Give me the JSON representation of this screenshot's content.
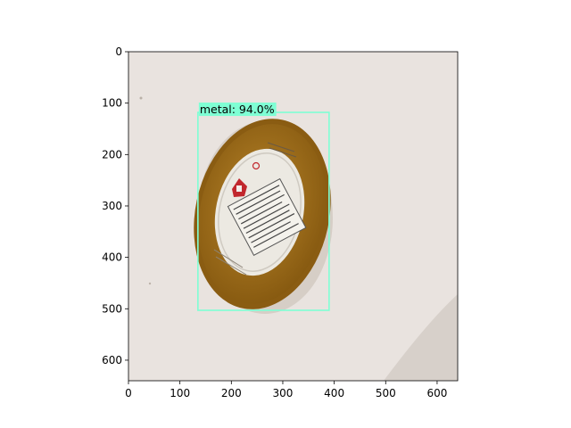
{
  "image": {
    "width": 640,
    "height": 640,
    "background_color": "#e9e3df",
    "subject_colors": {
      "lid_rim": "#8a5c12",
      "lid_face": "#a9761f",
      "label_paper": "#ece9e2",
      "red_mark": "#c1272d"
    }
  },
  "axes": {
    "x_ticks": [
      "0",
      "100",
      "200",
      "300",
      "400",
      "500",
      "600"
    ],
    "y_ticks": [
      "0",
      "100",
      "200",
      "300",
      "400",
      "500",
      "600"
    ],
    "xlim": [
      0,
      640
    ],
    "ylim": [
      640,
      0
    ]
  },
  "detection": {
    "label": "metal: 94.0%",
    "class_name": "metal",
    "confidence_pct": 94.0,
    "box": {
      "x_min": 135,
      "y_min": 118,
      "x_max": 390,
      "y_max": 503
    },
    "color": "#7fffd4"
  }
}
